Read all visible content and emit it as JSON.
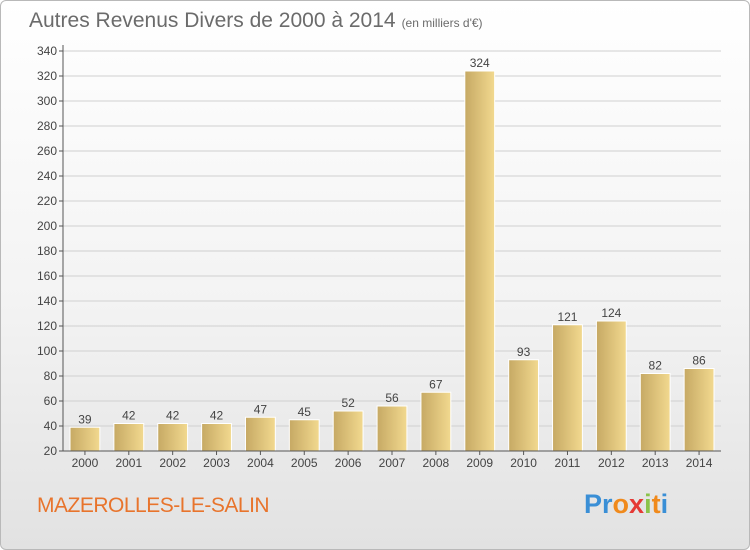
{
  "title": "Autres Revenus Divers de 2000 à 2014",
  "unit": "(en milliers d'€)",
  "location": "MAZEROLLES-LE-SALIN",
  "logo": {
    "p1": "Pr",
    "p2": "o",
    "p3": "x",
    "p4": "i",
    "p5": "t",
    "p6": "i"
  },
  "colors": {
    "bar_light": "#f2d98f",
    "bar_dark": "#c6a964",
    "grid": "#d0d0d0",
    "axis": "#555555",
    "label": "#444444"
  },
  "chart_data": {
    "type": "bar",
    "title": "Autres Revenus Divers de 2000 à 2014",
    "xlabel": "",
    "ylabel": "",
    "ylim": [
      20,
      340
    ],
    "yticks": [
      20,
      40,
      60,
      80,
      100,
      120,
      140,
      160,
      180,
      200,
      220,
      240,
      260,
      280,
      300,
      320,
      340
    ],
    "grid": true,
    "categories": [
      "2000",
      "2001",
      "2002",
      "2003",
      "2004",
      "2005",
      "2006",
      "2007",
      "2008",
      "2009",
      "2010",
      "2011",
      "2012",
      "2013",
      "2014"
    ],
    "values": [
      39,
      42,
      42,
      42,
      47,
      45,
      52,
      56,
      67,
      324,
      93,
      121,
      124,
      82,
      86
    ]
  }
}
